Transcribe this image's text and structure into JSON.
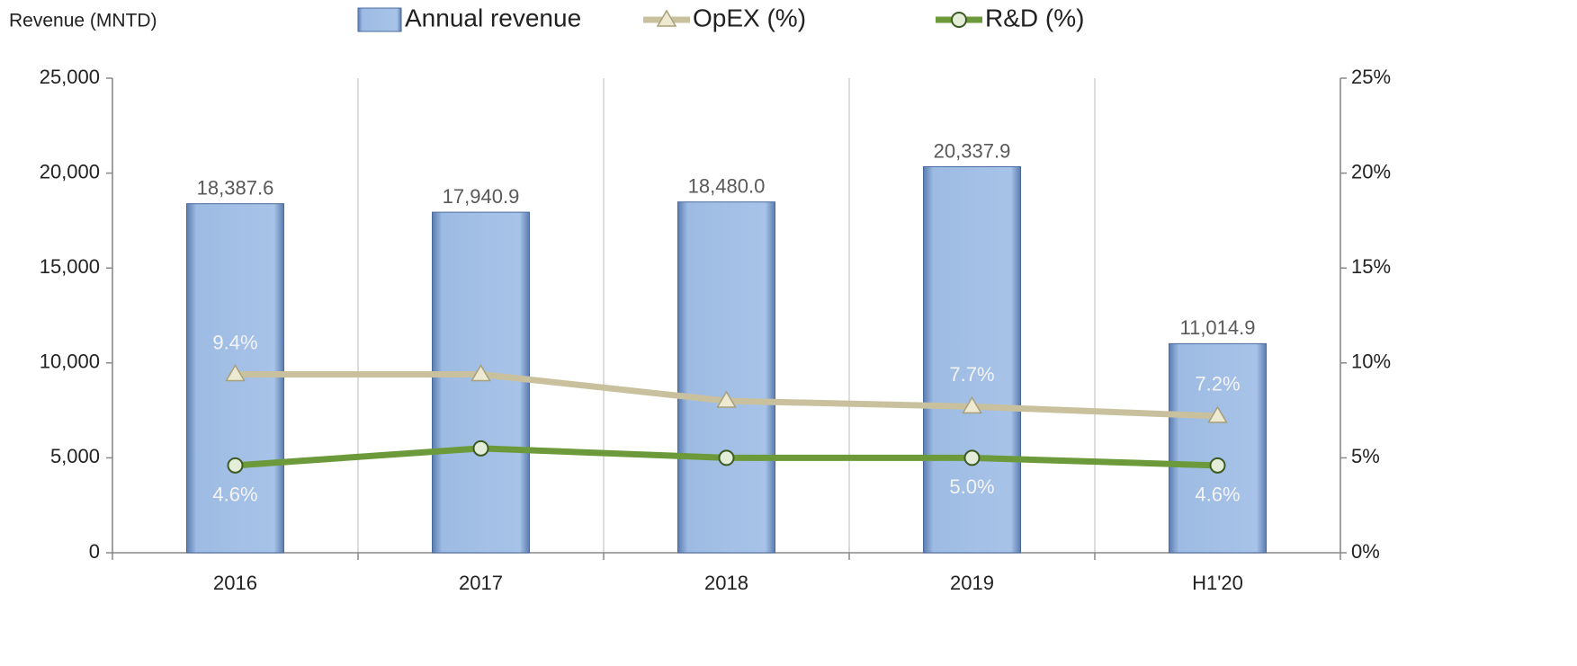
{
  "chart_data": {
    "type": "bar_line",
    "y_axis_label": "Revenue (MNTD)",
    "categories": [
      "2016",
      "2017",
      "2018",
      "2019",
      "H1'20"
    ],
    "series": [
      {
        "name": "Annual revenue",
        "type": "bar",
        "color": "#9dbbe3",
        "values": [
          18387.6,
          17940.9,
          18480.0,
          20337.9,
          11014.9
        ],
        "value_labels": [
          "18,387.6",
          "17,940.9",
          "18,480.0",
          "20,337.9",
          "11,014.9"
        ]
      },
      {
        "name": "OpEX (%)",
        "type": "line",
        "marker": "triangle",
        "axis": "y2",
        "color": "#c9c19e",
        "values": [
          9.4,
          9.4,
          8.0,
          7.7,
          7.2
        ],
        "value_labels": [
          "9.4%",
          null,
          null,
          "7.7%",
          "7.2%"
        ]
      },
      {
        "name": "R&D (%)",
        "type": "line",
        "marker": "circle",
        "axis": "y2",
        "color": "#6c9a3a",
        "values": [
          4.6,
          5.5,
          5.0,
          5.0,
          4.6
        ],
        "value_labels": [
          "4.6%",
          null,
          null,
          "5.0%",
          "4.6%"
        ]
      }
    ],
    "ylim": [
      0,
      25000
    ],
    "yticks": [
      0,
      {
        "value": 5000,
        "label": "5,000"
      },
      {
        "value": 10000,
        "label": "10,000"
      },
      {
        "value": 15000,
        "label": "15,000"
      },
      {
        "value": 20000,
        "label": "20,000"
      },
      {
        "value": 25000,
        "label": "25,000"
      }
    ],
    "y2lim": [
      0,
      25
    ],
    "y2ticks": [
      {
        "value": 0,
        "label": "0%"
      },
      {
        "value": 5,
        "label": "5%"
      },
      {
        "value": 10,
        "label": "10%"
      },
      {
        "value": 15,
        "label": "15%"
      },
      {
        "value": 20,
        "label": "20%"
      },
      {
        "value": 25,
        "label": "25%"
      }
    ],
    "grid": true
  }
}
